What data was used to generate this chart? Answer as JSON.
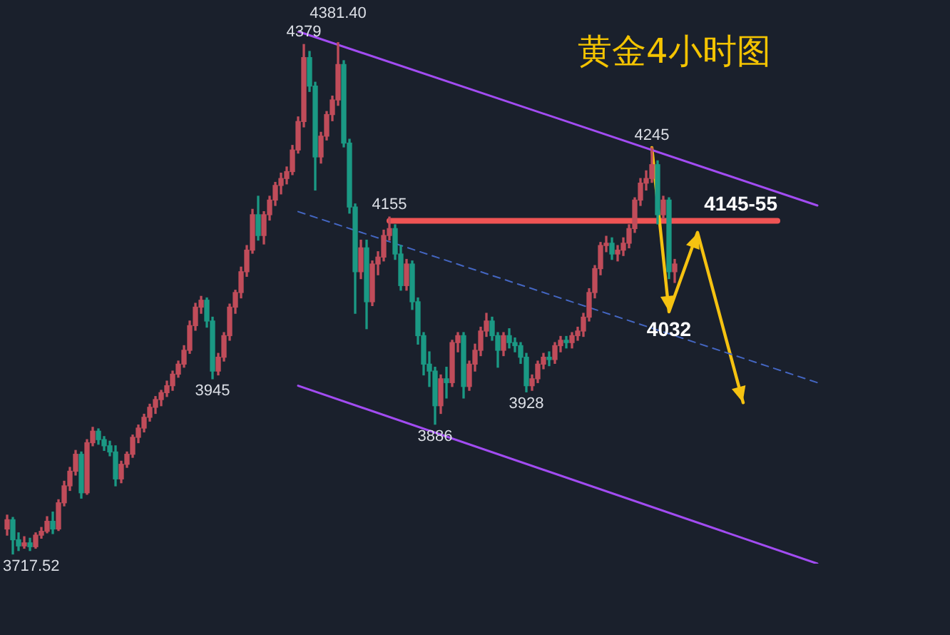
{
  "chart_data": {
    "type": "candlestick",
    "title": "黄金4小时图",
    "tick_labels": false,
    "categories": [
      null,
      null,
      null,
      null,
      null,
      null,
      null,
      null,
      null,
      null,
      null,
      null,
      null,
      null,
      null,
      null,
      null,
      null,
      null,
      null,
      null,
      null,
      null,
      null,
      null,
      null,
      null,
      null,
      null,
      null,
      null,
      null,
      null,
      null,
      null,
      null,
      null,
      null,
      null,
      null,
      null,
      null,
      null,
      null,
      null,
      null,
      null,
      null,
      null,
      null,
      null,
      null,
      null,
      null,
      null,
      null,
      null,
      null,
      null,
      null,
      null,
      null,
      null,
      null,
      null,
      null,
      null,
      null,
      null,
      null,
      null,
      null,
      null,
      null,
      null,
      null,
      null,
      null,
      null,
      null,
      null,
      null,
      null,
      null,
      null,
      null,
      null,
      null,
      null,
      null,
      null,
      null,
      null,
      null,
      null,
      null,
      null,
      null,
      null,
      null,
      null,
      null,
      null,
      null,
      null,
      null,
      null,
      null,
      null,
      null,
      null,
      null,
      null,
      null,
      null,
      null,
      null,
      null,
      null,
      null,
      null,
      null,
      null,
      null,
      null,
      null,
      null,
      null,
      null,
      null,
      null,
      null,
      null,
      null,
      null,
      null,
      null,
      null,
      null,
      null,
      null,
      null,
      null
    ],
    "ohlc": [
      [
        3750,
        3768,
        3742,
        3762
      ],
      [
        3762,
        3765,
        3717.52,
        3736
      ],
      [
        3736,
        3745,
        3722,
        3728
      ],
      [
        3728,
        3740,
        3725,
        3732
      ],
      [
        3732,
        3738,
        3722,
        3727
      ],
      [
        3727,
        3745,
        3725,
        3742
      ],
      [
        3742,
        3752,
        3738,
        3747
      ],
      [
        3747,
        3766,
        3745,
        3760
      ],
      [
        3760,
        3772,
        3744,
        3750
      ],
      [
        3750,
        3788,
        3748,
        3784
      ],
      [
        3784,
        3812,
        3780,
        3806
      ],
      [
        3806,
        3830,
        3800,
        3825
      ],
      [
        3825,
        3852,
        3820,
        3847
      ],
      [
        3847,
        3850,
        3790,
        3797
      ],
      [
        3797,
        3866,
        3795,
        3862
      ],
      [
        3862,
        3882,
        3858,
        3877
      ],
      [
        3877,
        3880,
        3860,
        3866
      ],
      [
        3866,
        3870,
        3852,
        3858
      ],
      [
        3858,
        3864,
        3845,
        3850
      ],
      [
        3850,
        3858,
        3806,
        3815
      ],
      [
        3815,
        3838,
        3810,
        3834
      ],
      [
        3834,
        3850,
        3830,
        3847
      ],
      [
        3847,
        3872,
        3843,
        3869
      ],
      [
        3869,
        3885,
        3862,
        3881
      ],
      [
        3881,
        3899,
        3876,
        3895
      ],
      [
        3895,
        3912,
        3890,
        3908
      ],
      [
        3908,
        3922,
        3900,
        3918
      ],
      [
        3918,
        3930,
        3910,
        3927
      ],
      [
        3927,
        3942,
        3922,
        3936
      ],
      [
        3936,
        3955,
        3930,
        3951
      ],
      [
        3951,
        3968,
        3947,
        3964
      ],
      [
        3964,
        3988,
        3960,
        3982
      ],
      [
        3982,
        4020,
        3978,
        4014
      ],
      [
        4014,
        4043,
        4008,
        4038
      ],
      [
        4038,
        4052,
        4030,
        4047
      ],
      [
        4047,
        4050,
        4012,
        4020
      ],
      [
        4020,
        4025,
        3945,
        3955
      ],
      [
        3955,
        3978,
        3950,
        3973
      ],
      [
        3973,
        4005,
        3968,
        4001
      ],
      [
        4001,
        4042,
        3995,
        4038
      ],
      [
        4038,
        4060,
        4030,
        4057
      ],
      [
        4057,
        4090,
        4050,
        4084
      ],
      [
        4084,
        4118,
        4078,
        4112
      ],
      [
        4112,
        4165,
        4108,
        4158
      ],
      [
        4158,
        4182,
        4125,
        4131
      ],
      [
        4131,
        4162,
        4120,
        4158
      ],
      [
        4158,
        4182,
        4151,
        4177
      ],
      [
        4177,
        4200,
        4170,
        4196
      ],
      [
        4196,
        4212,
        4185,
        4205
      ],
      [
        4205,
        4220,
        4198,
        4214
      ],
      [
        4214,
        4248,
        4210,
        4242
      ],
      [
        4242,
        4285,
        4238,
        4279
      ],
      [
        4279,
        4379,
        4272,
        4362
      ],
      [
        4362,
        4370,
        4318,
        4325
      ],
      [
        4325,
        4330,
        4190,
        4233
      ],
      [
        4233,
        4265,
        4225,
        4260
      ],
      [
        4260,
        4292,
        4255,
        4288
      ],
      [
        4288,
        4312,
        4280,
        4307
      ],
      [
        4307,
        4381.4,
        4300,
        4353
      ],
      [
        4353,
        4358,
        4246,
        4251
      ],
      [
        4251,
        4256,
        4160,
        4168
      ],
      [
        4168,
        4172,
        4030,
        4084
      ],
      [
        4084,
        4125,
        4075,
        4115
      ],
      [
        4115,
        4125,
        4010,
        4045
      ],
      [
        4045,
        4098,
        4040,
        4094
      ],
      [
        4094,
        4110,
        4080,
        4103
      ],
      [
        4103,
        4138,
        4098,
        4131
      ],
      [
        4131,
        4155,
        4125,
        4140
      ],
      [
        4140,
        4145,
        4100,
        4107
      ],
      [
        4107,
        4118,
        4060,
        4066
      ],
      [
        4066,
        4100,
        4060,
        4094
      ],
      [
        4094,
        4098,
        4035,
        4045
      ],
      [
        4045,
        4050,
        3990,
        4001
      ],
      [
        4001,
        4005,
        3950,
        3964
      ],
      [
        3964,
        3980,
        3935,
        3955
      ],
      [
        3955,
        3960,
        3886,
        3910
      ],
      [
        3910,
        3950,
        3900,
        3945
      ],
      [
        3945,
        3960,
        3920,
        3940
      ],
      [
        3940,
        3995,
        3935,
        3992
      ],
      [
        3992,
        4005,
        3980,
        4001
      ],
      [
        4001,
        4005,
        3920,
        3935
      ],
      [
        3935,
        3968,
        3930,
        3964
      ],
      [
        3964,
        3990,
        3955,
        3982
      ],
      [
        3982,
        4012,
        3975,
        4007
      ],
      [
        4007,
        4030,
        4000,
        4020
      ],
      [
        4020,
        4025,
        3995,
        4001
      ],
      [
        4001,
        4005,
        3960,
        3982
      ],
      [
        3982,
        4005,
        3975,
        4001
      ],
      [
        4001,
        4010,
        3985,
        3992
      ],
      [
        3992,
        3998,
        3980,
        3988
      ],
      [
        3988,
        3992,
        3965,
        3973
      ],
      [
        3973,
        3978,
        3928,
        3936
      ],
      [
        3936,
        3950,
        3930,
        3945
      ],
      [
        3945,
        3968,
        3940,
        3964
      ],
      [
        3964,
        3978,
        3958,
        3973
      ],
      [
        3973,
        3980,
        3962,
        3970
      ],
      [
        3970,
        3992,
        3965,
        3988
      ],
      [
        3988,
        4000,
        3980,
        3995
      ],
      [
        3995,
        4000,
        3985,
        3992
      ],
      [
        3992,
        4005,
        3985,
        4001
      ],
      [
        4001,
        4012,
        3995,
        4007
      ],
      [
        4007,
        4030,
        4000,
        4025
      ],
      [
        4025,
        4062,
        4020,
        4057
      ],
      [
        4057,
        4092,
        4050,
        4088
      ],
      [
        4088,
        4122,
        4080,
        4118
      ],
      [
        4118,
        4130,
        4110,
        4121
      ],
      [
        4121,
        4128,
        4100,
        4107
      ],
      [
        4107,
        4118,
        4098,
        4112
      ],
      [
        4112,
        4128,
        4105,
        4121
      ],
      [
        4121,
        4145,
        4115,
        4140
      ],
      [
        4140,
        4180,
        4135,
        4177
      ],
      [
        4177,
        4205,
        4170,
        4199
      ],
      [
        4199,
        4215,
        4190,
        4205
      ],
      [
        4205,
        4245,
        4200,
        4223
      ],
      [
        4223,
        4228,
        4146,
        4158
      ],
      [
        4158,
        4182,
        4153,
        4177
      ],
      [
        4177,
        4180,
        4075,
        4084
      ],
      [
        4084,
        4100,
        4070,
        4094
      ],
      null,
      null,
      null,
      null,
      null,
      null,
      null,
      null,
      null,
      null,
      null,
      null,
      null,
      null,
      null,
      null,
      null,
      null,
      null,
      null,
      null,
      null,
      null,
      null,
      null
    ],
    "colors": [
      "#c04c5a",
      "#1b9984",
      "#1b9984",
      "#c04c5a",
      "#1b9984",
      "#c04c5a",
      "#c04c5a",
      "#c04c5a",
      "#1b9984",
      "#c04c5a",
      "#c04c5a",
      "#c04c5a",
      "#c04c5a",
      "#1b9984",
      "#c04c5a",
      "#c04c5a",
      "#1b9984",
      "#1b9984",
      "#1b9984",
      "#1b9984",
      "#c04c5a",
      "#c04c5a",
      "#c04c5a",
      "#c04c5a",
      "#c04c5a",
      "#c04c5a",
      "#c04c5a",
      "#c04c5a",
      "#c04c5a",
      "#c04c5a",
      "#c04c5a",
      "#c04c5a",
      "#c04c5a",
      "#c04c5a",
      "#c04c5a",
      "#1b9984",
      "#1b9984",
      "#c04c5a",
      "#c04c5a",
      "#c04c5a",
      "#c04c5a",
      "#c04c5a",
      "#c04c5a",
      "#c04c5a",
      "#1b9984",
      "#c04c5a",
      "#c04c5a",
      "#c04c5a",
      "#c04c5a",
      "#c04c5a",
      "#c04c5a",
      "#c04c5a",
      "#c04c5a",
      "#1b9984",
      "#1b9984",
      "#c04c5a",
      "#c04c5a",
      "#c04c5a",
      "#c04c5a",
      "#1b9984",
      "#1b9984",
      "#1b9984",
      "#c04c5a",
      "#1b9984",
      "#c04c5a",
      "#c04c5a",
      "#c04c5a",
      "#c04c5a",
      "#1b9984",
      "#1b9984",
      "#c04c5a",
      "#1b9984",
      "#1b9984",
      "#1b9984",
      "#1b9984",
      "#1b9984",
      "#c04c5a",
      "#1b9984",
      "#c04c5a",
      "#c04c5a",
      "#1b9984",
      "#c04c5a",
      "#c04c5a",
      "#c04c5a",
      "#c04c5a",
      "#1b9984",
      "#1b9984",
      "#c04c5a",
      "#1b9984",
      "#1b9984",
      "#1b9984",
      "#1b9984",
      "#c04c5a",
      "#c04c5a",
      "#c04c5a",
      "#1b9984",
      "#c04c5a",
      "#c04c5a",
      "#1b9984",
      "#c04c5a",
      "#c04c5a",
      "#c04c5a",
      "#c04c5a",
      "#c04c5a",
      "#c04c5a",
      "#c04c5a",
      "#1b9984",
      "#c04c5a",
      "#c04c5a",
      "#c04c5a",
      "#c04c5a",
      "#c04c5a",
      "#c04c5a",
      "#c04c5a",
      "#1b9984",
      "#c04c5a",
      "#1b9984",
      "#c04c5a",
      null,
      null,
      null,
      null,
      null,
      null,
      null,
      null,
      null,
      null,
      null,
      null,
      null,
      null,
      null,
      null,
      null,
      null,
      null,
      null,
      null,
      null,
      null,
      null,
      null
    ],
    "series": [
      {
        "type": "line",
        "color": "#a24cf2",
        "values": [
          null,
          null,
          null,
          null,
          null,
          null,
          null,
          null,
          null,
          null,
          null,
          null,
          null,
          null,
          null,
          null,
          null,
          null,
          null,
          null,
          null,
          null,
          null,
          null,
          null,
          null,
          null,
          null,
          null,
          null,
          null,
          null,
          null,
          null,
          null,
          null,
          null,
          null,
          null,
          null,
          null,
          null,
          null,
          null,
          null,
          null,
          null,
          null,
          null,
          null,
          null,
          4396,
          null,
          null,
          null,
          null,
          null,
          null,
          null,
          null,
          null,
          null,
          null,
          null,
          null,
          null,
          null,
          null,
          null,
          null,
          null,
          null,
          null,
          null,
          null,
          null,
          null,
          null,
          null,
          null,
          null,
          null,
          null,
          null,
          null,
          null,
          null,
          null,
          null,
          null,
          null,
          null,
          null,
          null,
          null,
          null,
          null,
          null,
          null,
          null,
          null,
          null,
          null,
          null,
          null,
          null,
          null,
          null,
          null,
          null,
          null,
          null,
          null,
          null,
          null,
          null,
          null,
          null,
          null,
          null,
          null,
          null,
          null,
          null,
          null,
          null,
          null,
          null,
          null,
          null,
          null,
          null,
          null,
          null,
          null,
          null,
          null,
          null,
          null,
          null,
          null,
          null,
          4170
        ]
      },
      {
        "type": "line",
        "color": "#4466c2",
        "line_style": "dashed",
        "values": [
          null,
          null,
          null,
          null,
          null,
          null,
          null,
          null,
          null,
          null,
          null,
          null,
          null,
          null,
          null,
          null,
          null,
          null,
          null,
          null,
          null,
          null,
          null,
          null,
          null,
          null,
          null,
          null,
          null,
          null,
          null,
          null,
          null,
          null,
          null,
          null,
          null,
          null,
          null,
          null,
          null,
          null,
          null,
          null,
          null,
          null,
          null,
          null,
          null,
          null,
          null,
          4162,
          null,
          null,
          null,
          null,
          null,
          null,
          null,
          null,
          null,
          null,
          null,
          null,
          null,
          null,
          null,
          null,
          null,
          null,
          null,
          null,
          null,
          null,
          null,
          null,
          null,
          null,
          null,
          null,
          null,
          null,
          null,
          null,
          null,
          null,
          null,
          null,
          null,
          null,
          null,
          null,
          null,
          null,
          null,
          null,
          null,
          null,
          null,
          null,
          null,
          null,
          null,
          null,
          null,
          null,
          null,
          null,
          null,
          null,
          null,
          null,
          null,
          null,
          null,
          null,
          null,
          null,
          null,
          null,
          null,
          null,
          null,
          null,
          null,
          null,
          null,
          null,
          null,
          null,
          null,
          null,
          null,
          null,
          null,
          null,
          null,
          null,
          null,
          null,
          null,
          null,
          3940
        ]
      },
      {
        "type": "line",
        "color": "#a24cf2",
        "values": [
          null,
          null,
          null,
          null,
          null,
          null,
          null,
          null,
          null,
          null,
          null,
          null,
          null,
          null,
          null,
          null,
          null,
          null,
          null,
          null,
          null,
          null,
          null,
          null,
          null,
          null,
          null,
          null,
          null,
          null,
          null,
          null,
          null,
          null,
          null,
          null,
          null,
          null,
          null,
          null,
          null,
          null,
          null,
          null,
          null,
          null,
          null,
          null,
          null,
          null,
          null,
          3936,
          null,
          null,
          null,
          null,
          null,
          null,
          null,
          null,
          null,
          null,
          null,
          null,
          null,
          null,
          null,
          null,
          null,
          null,
          null,
          null,
          null,
          null,
          null,
          null,
          null,
          null,
          null,
          null,
          null,
          null,
          null,
          null,
          null,
          null,
          null,
          null,
          null,
          null,
          null,
          null,
          null,
          null,
          null,
          null,
          null,
          null,
          null,
          null,
          null,
          null,
          null,
          null,
          null,
          null,
          null,
          null,
          null,
          null,
          null,
          null,
          null,
          null,
          null,
          null,
          null,
          null,
          null,
          null,
          null,
          null,
          null,
          null,
          null,
          null,
          null,
          null,
          null,
          null,
          null,
          null,
          null,
          null,
          null,
          null,
          null,
          null,
          null,
          null,
          null,
          null,
          3705
        ]
      },
      {
        "type": "line",
        "color": "#f5c211",
        "values": [
          null,
          null,
          null,
          null,
          null,
          null,
          null,
          null,
          null,
          null,
          null,
          null,
          null,
          null,
          null,
          null,
          null,
          null,
          null,
          null,
          null,
          null,
          null,
          null,
          null,
          null,
          null,
          null,
          null,
          null,
          null,
          null,
          null,
          null,
          null,
          null,
          null,
          null,
          null,
          null,
          null,
          null,
          null,
          null,
          null,
          null,
          null,
          null,
          null,
          null,
          null,
          null,
          null,
          null,
          null,
          null,
          null,
          null,
          null,
          null,
          null,
          null,
          null,
          null,
          null,
          null,
          null,
          null,
          null,
          null,
          null,
          null,
          null,
          null,
          null,
          null,
          null,
          null,
          null,
          null,
          null,
          null,
          null,
          null,
          null,
          null,
          null,
          null,
          null,
          null,
          null,
          null,
          null,
          null,
          null,
          null,
          null,
          null,
          null,
          null,
          null,
          null,
          null,
          null,
          null,
          null,
          null,
          null,
          null,
          null,
          null,
          null,
          null,
          4245,
          null,
          null,
          4032,
          null,
          null,
          null,
          null,
          4135,
          null,
          null,
          null,
          null,
          null,
          null,
          null,
          3914,
          null,
          null,
          null,
          null,
          null,
          null,
          null,
          null,
          null,
          null,
          null,
          null,
          null
        ]
      },
      {
        "type": "line",
        "color": "#f05454",
        "values": [
          null,
          null,
          null,
          null,
          null,
          null,
          null,
          null,
          null,
          null,
          null,
          null,
          null,
          null,
          null,
          null,
          null,
          null,
          null,
          null,
          null,
          null,
          null,
          null,
          null,
          null,
          null,
          null,
          null,
          null,
          null,
          null,
          null,
          null,
          null,
          null,
          null,
          null,
          null,
          null,
          null,
          null,
          null,
          null,
          null,
          null,
          null,
          null,
          null,
          null,
          null,
          null,
          null,
          null,
          null,
          null,
          null,
          null,
          null,
          null,
          null,
          null,
          null,
          null,
          null,
          null,
          null,
          4150,
          null,
          null,
          null,
          null,
          null,
          null,
          null,
          null,
          null,
          null,
          null,
          null,
          null,
          null,
          null,
          null,
          null,
          null,
          null,
          null,
          null,
          null,
          null,
          null,
          null,
          null,
          null,
          null,
          null,
          null,
          null,
          null,
          null,
          null,
          null,
          null,
          null,
          null,
          null,
          null,
          null,
          null,
          null,
          null,
          null,
          null,
          null,
          null,
          null,
          null,
          null,
          null,
          null,
          null,
          null,
          null,
          null,
          null,
          null,
          null,
          null,
          null,
          null,
          null,
          null,
          null,
          null,
          4150,
          null,
          null,
          null,
          null,
          null,
          null,
          null
        ]
      }
    ],
    "annotations": [
      {
        "text": "4379",
        "y": 4379
      },
      {
        "text": "4381.40",
        "y": 4381.4
      },
      {
        "text": "4155",
        "y": 4155
      },
      {
        "text": "3945",
        "y": 3945
      },
      {
        "text": "3886",
        "y": 3886
      },
      {
        "text": "3928",
        "y": 3928
      },
      {
        "text": "4245",
        "y": 4245
      },
      {
        "text": "3717.52",
        "y": 3717.52
      },
      {
        "text": "4032",
        "y": 4032
      },
      {
        "text": "4145-55",
        "y": 4150
      }
    ]
  }
}
